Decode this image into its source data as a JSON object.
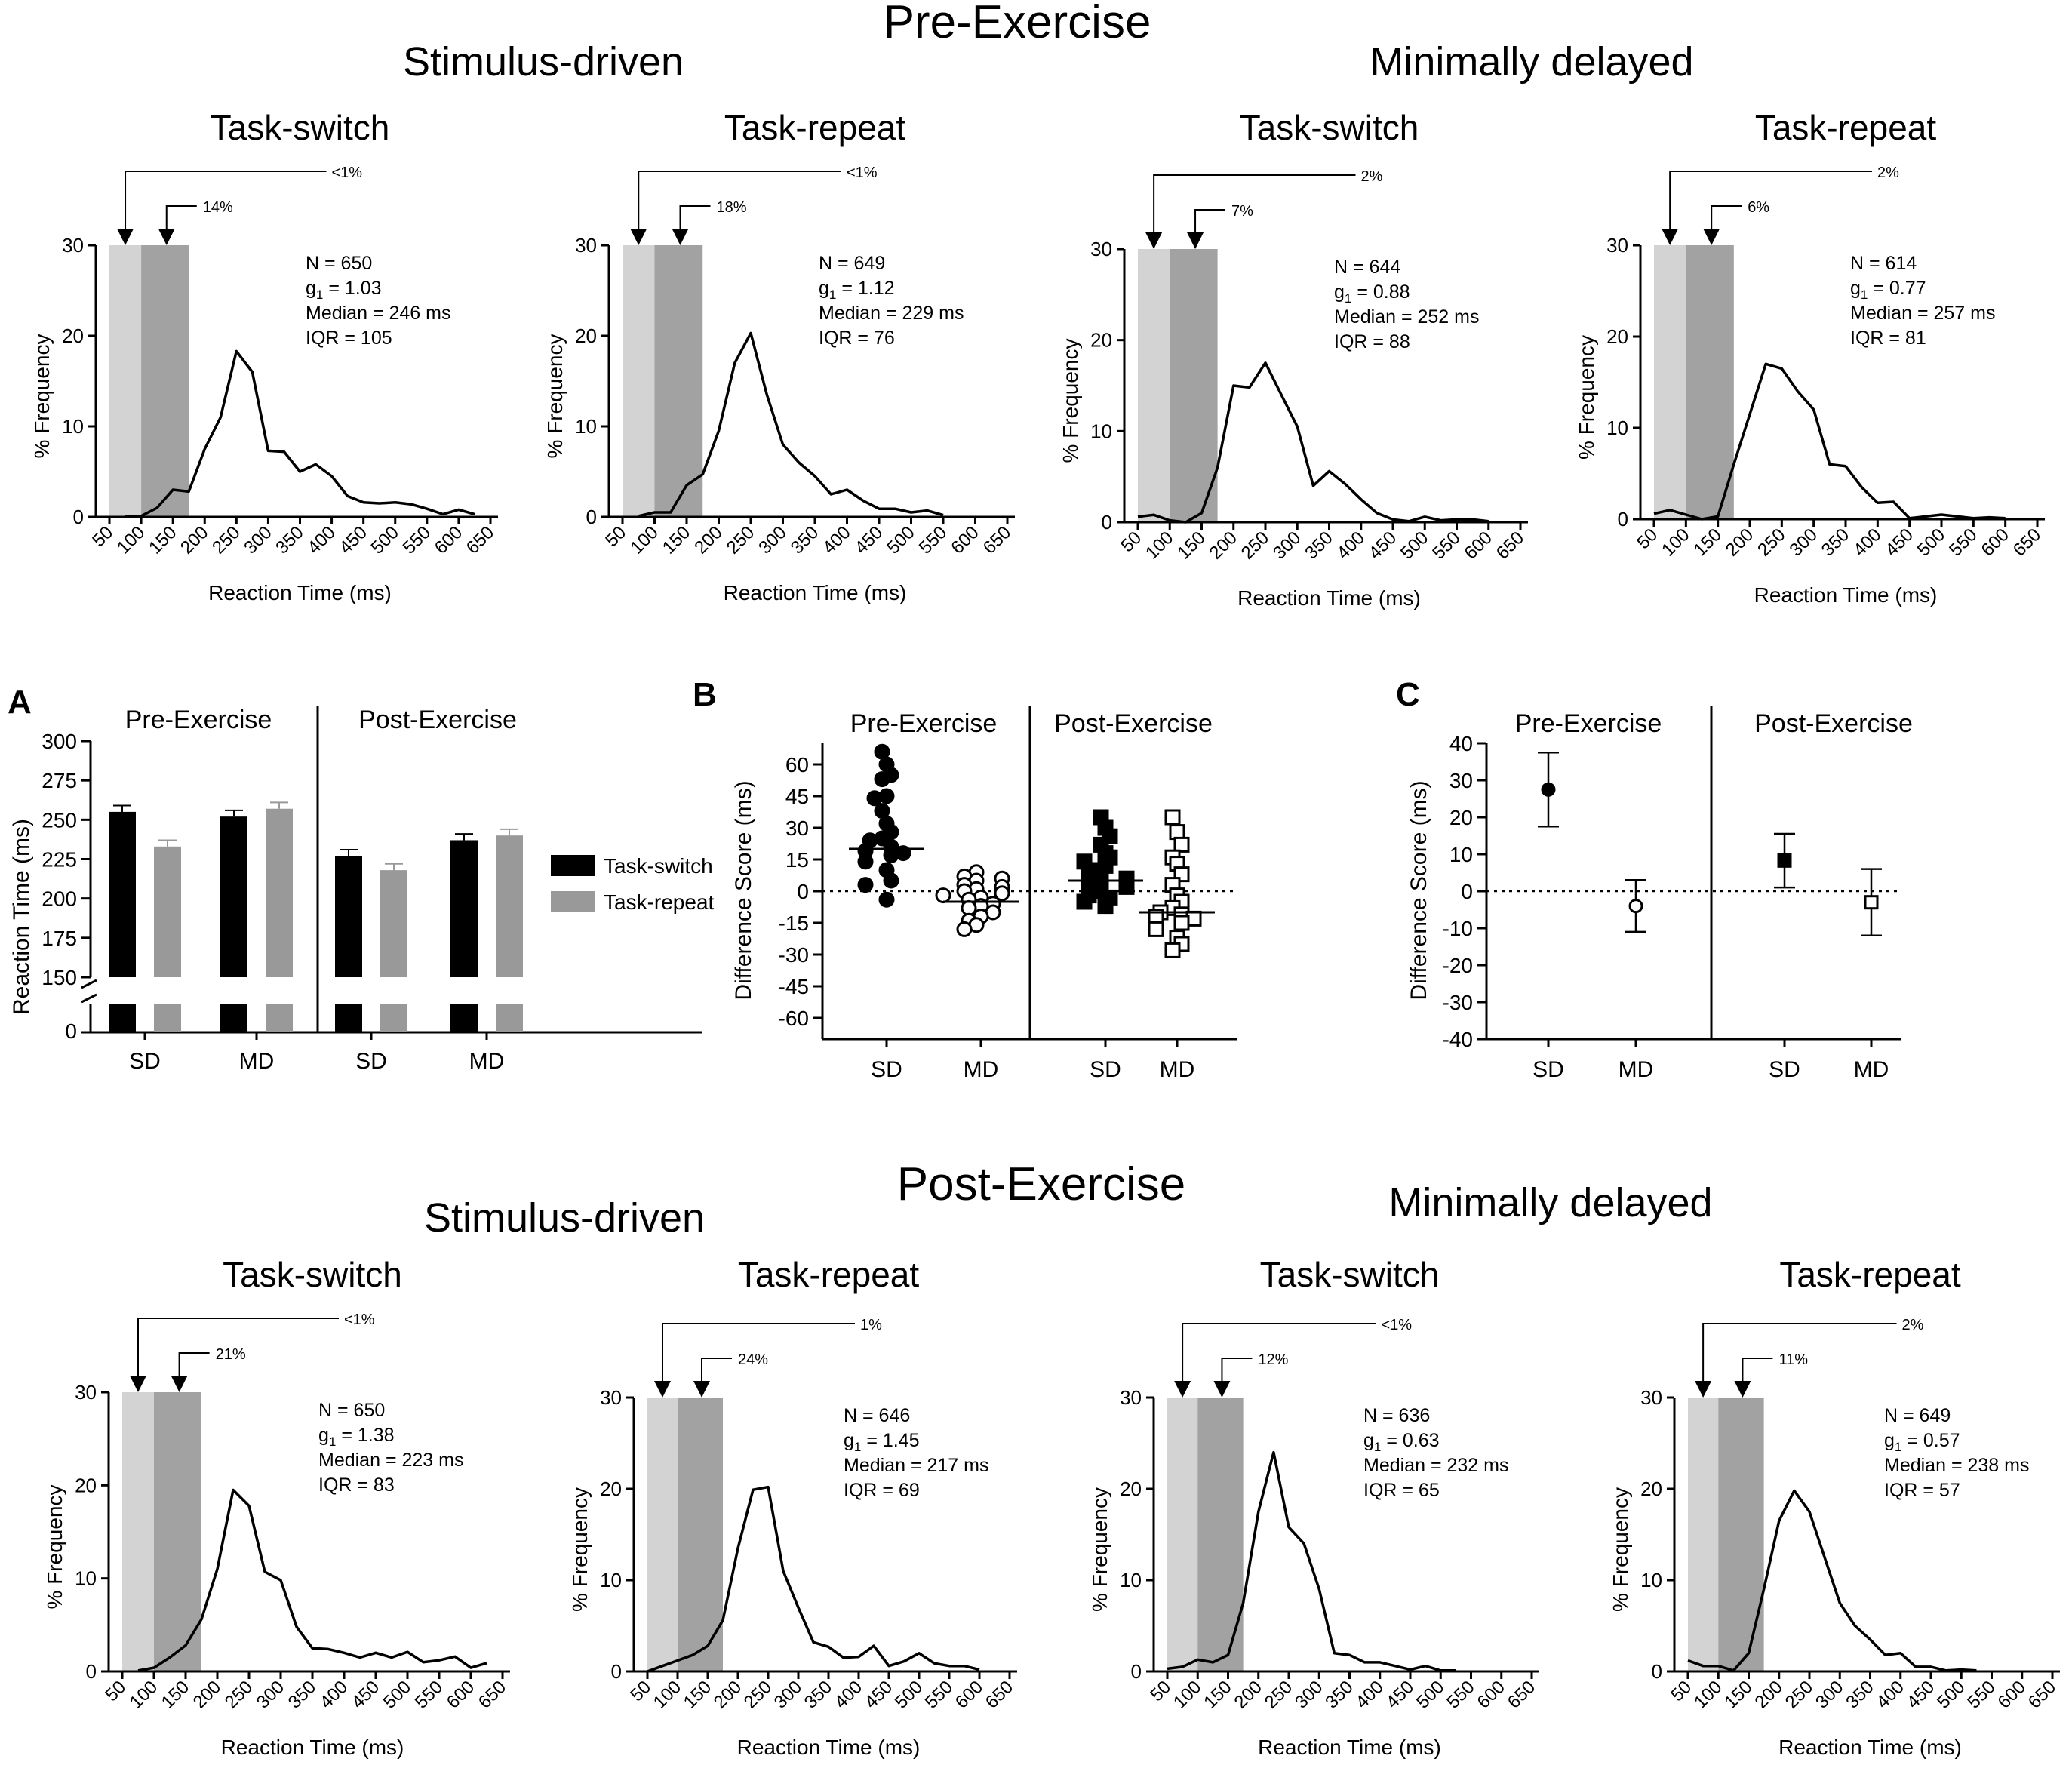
{
  "headings": {
    "pre": "Pre-Exercise",
    "post": "Post-Exercise",
    "pre_sd": "Stimulus-driven",
    "pre_md": "Minimally delayed",
    "post_sd": "Stimulus-driven",
    "post_md": "Minimally delayed"
  },
  "hist_axes": {
    "xlabel": "Reaction Time (ms)",
    "ylabel": "% Frequency",
    "xticks": [
      "50",
      "100",
      "150",
      "200",
      "250",
      "300",
      "350",
      "400",
      "450",
      "500",
      "550",
      "600",
      "650"
    ],
    "yticks": [
      "0",
      "10",
      "20",
      "30"
    ],
    "xlim": [
      50,
      650
    ],
    "ylim": [
      0,
      30
    ],
    "shade_light": [
      50,
      100
    ],
    "shade_dark": [
      100,
      175
    ]
  },
  "colors": {
    "shade_light": "#d3d3d3",
    "shade_dark": "#a2a2a2",
    "bar_switch": "#000000",
    "bar_repeat": "#999999"
  },
  "chart_data": [
    {
      "type": "line",
      "phase": "Pre-Exercise",
      "group": "Stimulus-driven",
      "title": "Task-switch",
      "x": [
        75,
        100,
        125,
        150,
        175,
        200,
        225,
        250,
        275,
        300,
        325,
        350,
        375,
        400,
        425,
        450,
        475,
        500,
        525,
        550,
        575,
        600,
        625
      ],
      "y": [
        0.1,
        0.1,
        1.0,
        3.0,
        2.8,
        7.5,
        11.0,
        18.3,
        16.0,
        7.3,
        7.2,
        5.0,
        5.8,
        4.5,
        2.3,
        1.6,
        1.5,
        1.6,
        1.4,
        0.9,
        0.3,
        0.8,
        0.3
      ],
      "arrows": [
        "<1%",
        "14%"
      ],
      "stats": [
        "N = 650",
        "1.03",
        "Median = 246 ms",
        "IQR = 105"
      ]
    },
    {
      "type": "line",
      "phase": "Pre-Exercise",
      "group": "Stimulus-driven",
      "title": "Task-repeat",
      "x": [
        75,
        100,
        125,
        150,
        175,
        200,
        225,
        250,
        275,
        300,
        325,
        350,
        375,
        400,
        425,
        450,
        475,
        500,
        525,
        550
      ],
      "y": [
        0.1,
        0.5,
        0.5,
        3.5,
        4.7,
        9.5,
        17.0,
        20.3,
        13.5,
        8.0,
        6.0,
        4.5,
        2.5,
        3.0,
        1.8,
        0.9,
        0.9,
        0.5,
        0.7,
        0.2
      ],
      "arrows": [
        "<1%",
        "18%"
      ],
      "stats": [
        "N = 649",
        "1.12",
        "Median = 229 ms",
        "IQR = 76"
      ]
    },
    {
      "type": "line",
      "phase": "Pre-Exercise",
      "group": "Minimally delayed",
      "title": "Task-switch",
      "x": [
        50,
        75,
        100,
        125,
        150,
        175,
        200,
        225,
        250,
        275,
        300,
        325,
        350,
        375,
        400,
        425,
        450,
        475,
        500,
        525,
        550,
        575,
        600
      ],
      "y": [
        0.6,
        0.8,
        0.2,
        0.0,
        1.0,
        6.0,
        15.0,
        14.8,
        17.5,
        14.0,
        10.5,
        4.0,
        5.6,
        4.2,
        2.5,
        1.0,
        0.3,
        0.1,
        0.6,
        0.2,
        0.3,
        0.3,
        0.1
      ],
      "arrows": [
        "2%",
        "7%"
      ],
      "stats": [
        "N = 644",
        "0.88",
        "Median = 252 ms",
        "IQR = 88"
      ]
    },
    {
      "type": "line",
      "phase": "Pre-Exercise",
      "group": "Minimally delayed",
      "title": "Task-repeat",
      "x": [
        50,
        75,
        100,
        125,
        150,
        175,
        200,
        225,
        250,
        275,
        300,
        325,
        350,
        375,
        400,
        425,
        450,
        475,
        500,
        525,
        550,
        575,
        600
      ],
      "y": [
        0.6,
        1.0,
        0.5,
        0.0,
        0.3,
        6.0,
        11.5,
        17.0,
        16.5,
        14.0,
        12.0,
        6.0,
        5.8,
        3.5,
        1.8,
        1.9,
        0.1,
        0.3,
        0.5,
        0.3,
        0.1,
        0.2,
        0.1
      ],
      "arrows": [
        "2%",
        "6%"
      ],
      "stats": [
        "N = 614",
        "0.77",
        "Median = 257 ms",
        "IQR = 81"
      ]
    },
    {
      "type": "line",
      "phase": "Post-Exercise",
      "group": "Stimulus-driven",
      "title": "Task-switch",
      "x": [
        75,
        100,
        125,
        150,
        175,
        200,
        225,
        250,
        275,
        300,
        325,
        350,
        375,
        400,
        425,
        450,
        475,
        500,
        525,
        550,
        575,
        600,
        625
      ],
      "y": [
        0.1,
        0.4,
        1.5,
        2.8,
        5.6,
        11.0,
        19.5,
        17.8,
        10.7,
        9.8,
        4.8,
        2.5,
        2.4,
        2.0,
        1.5,
        2.0,
        1.5,
        2.1,
        1.0,
        1.2,
        1.6,
        0.4,
        0.9
      ],
      "arrows": [
        "<1%",
        "21%"
      ],
      "stats": [
        "N = 650",
        "1.38",
        "Median = 223 ms",
        "IQR = 83"
      ]
    },
    {
      "type": "line",
      "phase": "Post-Exercise",
      "group": "Stimulus-driven",
      "title": "Task-repeat",
      "x": [
        50,
        75,
        100,
        125,
        150,
        175,
        200,
        225,
        250,
        275,
        300,
        325,
        350,
        375,
        400,
        425,
        450,
        475,
        500,
        525,
        550,
        575,
        600
      ],
      "y": [
        0.0,
        0.6,
        1.2,
        1.8,
        2.8,
        5.6,
        13.5,
        19.9,
        20.2,
        11.0,
        7.0,
        3.2,
        2.7,
        1.5,
        1.6,
        2.8,
        0.6,
        1.1,
        2.0,
        0.9,
        0.6,
        0.6,
        0.2
      ],
      "arrows": [
        "1%",
        "24%"
      ],
      "stats": [
        "N = 646",
        "1.45",
        "Median = 217 ms",
        "IQR = 69"
      ]
    },
    {
      "type": "line",
      "phase": "Post-Exercise",
      "group": "Minimally delayed",
      "title": "Task-switch",
      "x": [
        50,
        75,
        100,
        125,
        150,
        175,
        200,
        225,
        250,
        275,
        300,
        325,
        350,
        375,
        400,
        425,
        450,
        475,
        500,
        525
      ],
      "y": [
        0.3,
        0.5,
        1.3,
        1.0,
        1.8,
        7.5,
        17.5,
        24.0,
        15.8,
        14.0,
        9.0,
        2.0,
        1.8,
        1.0,
        1.0,
        0.6,
        0.2,
        0.6,
        0.1,
        0.1
      ],
      "arrows": [
        "<1%",
        "12%"
      ],
      "stats": [
        "N = 636",
        "0.63",
        "Median = 232 ms",
        "IQR = 65"
      ]
    },
    {
      "type": "line",
      "phase": "Post-Exercise",
      "group": "Minimally delayed",
      "title": "Task-repeat",
      "x": [
        50,
        75,
        100,
        125,
        150,
        175,
        200,
        225,
        250,
        275,
        300,
        325,
        350,
        375,
        400,
        425,
        450,
        475,
        500,
        525
      ],
      "y": [
        1.2,
        0.6,
        0.6,
        0.1,
        2.0,
        9.0,
        16.5,
        19.8,
        17.5,
        12.5,
        7.5,
        5.0,
        3.5,
        1.8,
        2.0,
        0.5,
        0.5,
        0.1,
        0.2,
        0.1
      ],
      "arrows": [
        "2%",
        "11%"
      ],
      "stats": [
        "N = 649",
        "0.57",
        "Median = 238 ms",
        "IQR = 57"
      ]
    },
    {
      "type": "bar",
      "panel": "A",
      "groups": [
        "Pre-Exercise",
        "Post-Exercise"
      ],
      "categories": [
        "SD",
        "MD",
        "SD",
        "MD"
      ],
      "series": [
        {
          "name": "Task-switch",
          "values": [
            255,
            252,
            227,
            237
          ],
          "errors": [
            4,
            4,
            4,
            4
          ]
        },
        {
          "name": "Task-repeat",
          "values": [
            233,
            257,
            218,
            240
          ],
          "errors": [
            4,
            4,
            4,
            4
          ]
        }
      ],
      "ylabel": "Reaction Time (ms)",
      "yticks": [
        "150",
        "175",
        "200",
        "225",
        "250",
        "275",
        "300"
      ],
      "ylim": [
        150,
        300
      ],
      "axis_break": "0"
    },
    {
      "type": "scatter",
      "panel": "B",
      "groups": [
        "Pre-Exercise",
        "Post-Exercise"
      ],
      "categories": [
        "SD",
        "MD",
        "SD",
        "MD"
      ],
      "ylabel": "Difference Score (ms)",
      "yticks": [
        "60",
        "45",
        "30",
        "15",
        "0",
        "-15",
        "-30",
        "-45",
        "-60"
      ],
      "ylim": [
        -70,
        70
      ],
      "series": [
        {
          "name": "Pre SD",
          "values": [
            66,
            60,
            55,
            53,
            45,
            44,
            38,
            32,
            28,
            25,
            24,
            21,
            19,
            18,
            17,
            14,
            10,
            5,
            3,
            -4
          ],
          "median": 20
        },
        {
          "name": "Pre MD",
          "values": [
            9,
            7,
            6,
            5,
            3,
            2,
            1,
            0,
            -1,
            -2,
            -3,
            -4,
            -6,
            -7,
            -8,
            -10,
            -12,
            -14,
            -16,
            -18
          ],
          "median": -5
        },
        {
          "name": "Post SD",
          "values": [
            35,
            30,
            26,
            22,
            18,
            16,
            14,
            12,
            10,
            8,
            7,
            6,
            5,
            4,
            2,
            0,
            -2,
            -3,
            -5,
            -7
          ],
          "median": 5
        },
        {
          "name": "Post MD",
          "values": [
            35,
            28,
            22,
            16,
            13,
            8,
            3,
            -2,
            -5,
            -8,
            -10,
            -11,
            -12,
            -13,
            -15,
            -18,
            -22,
            -25,
            -28
          ],
          "median": -10
        }
      ]
    },
    {
      "type": "scatter",
      "panel": "C",
      "groups": [
        "Pre-Exercise",
        "Post-Exercise"
      ],
      "categories": [
        "SD",
        "MD",
        "SD",
        "MD"
      ],
      "ylabel": "Difference Score (ms)",
      "yticks": [
        "40",
        "30",
        "20",
        "10",
        "0",
        "-10",
        "-20",
        "-30",
        "-40"
      ],
      "ylim": [
        -40,
        40
      ],
      "means": [
        27.5,
        -4,
        8.3,
        -3
      ],
      "ci_low": [
        17.5,
        -11,
        1,
        -12
      ],
      "ci_high": [
        37.5,
        3,
        15.5,
        6
      ]
    }
  ],
  "panel_letters": {
    "a": "A",
    "b": "B",
    "c": "C"
  },
  "panel_group_labels": {
    "pre": "Pre-Exercise",
    "post": "Post-Exercise"
  },
  "panel_categories": [
    "SD",
    "MD",
    "SD",
    "MD"
  ],
  "legend": {
    "switch": "Task-switch",
    "repeat": "Task-repeat"
  }
}
